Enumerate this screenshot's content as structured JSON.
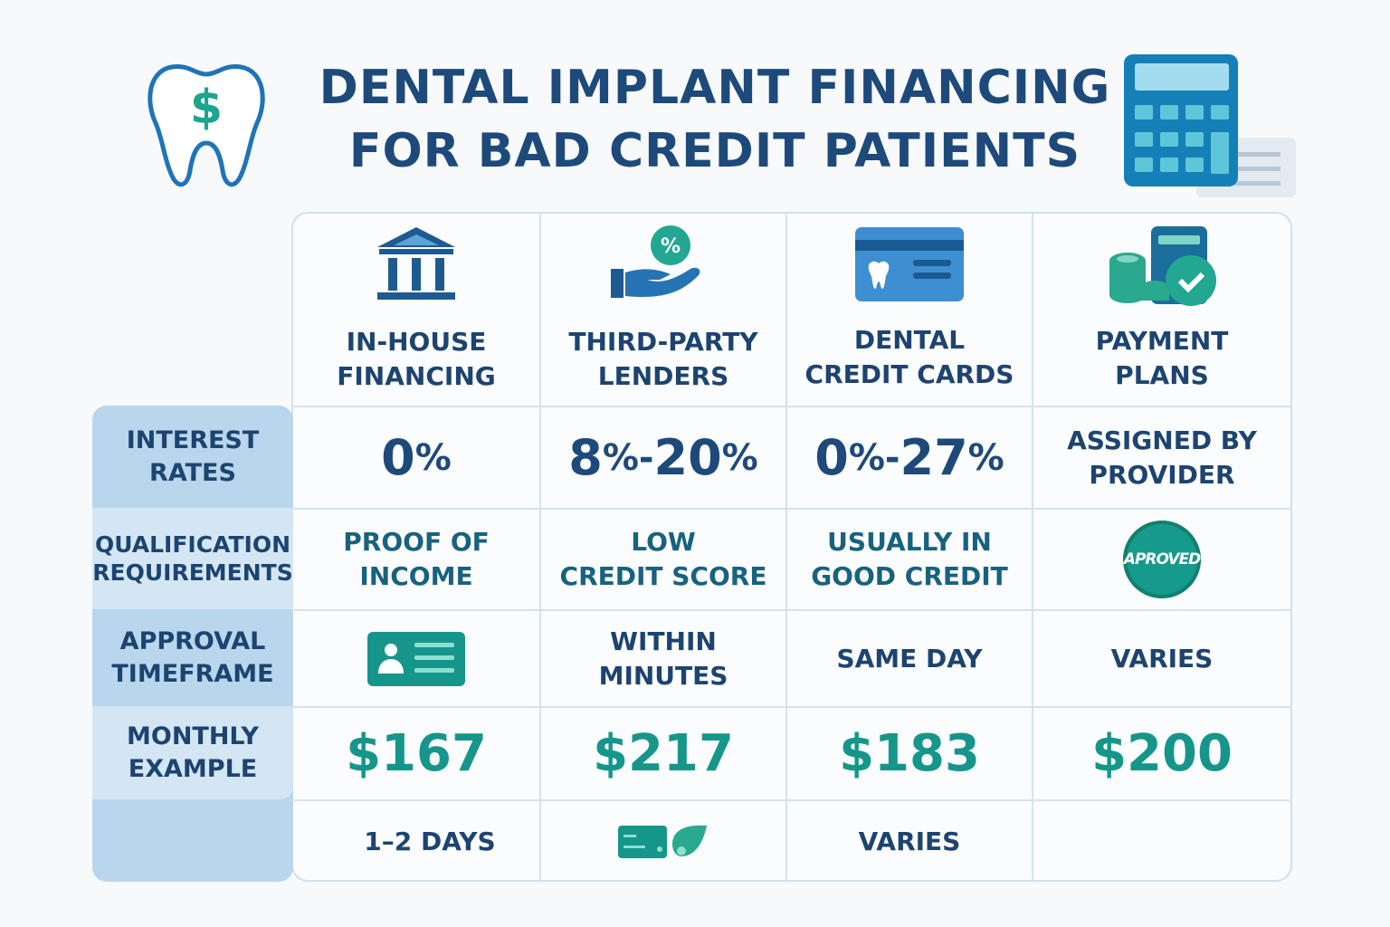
{
  "title": {
    "line1": "DENTAL IMPLANT FINANCING",
    "line2": "FOR BAD CREDIT PATIENTS"
  },
  "icons": {
    "logo": "tooth-dollar-icon",
    "corner": "calculator-icon"
  },
  "colors": {
    "navy": "#1d4a7a",
    "teal": "#16968a",
    "label_bg": "#b9d6ec",
    "label_bg_light": "#d4e6f4"
  },
  "columns": [
    {
      "line1": "IN-HOUSE",
      "line2": "FINANCING",
      "icon": "bank-icon"
    },
    {
      "line1": "THIRD-PARTY",
      "line2": "LENDERS",
      "icon": "hand-percent-icon"
    },
    {
      "line1": "DENTAL",
      "line2": "CREDIT CARDS",
      "icon": "dental-card-icon"
    },
    {
      "line1": "PAYMENT",
      "line2": "PLANS",
      "icon": "coins-check-icon"
    }
  ],
  "rows": [
    {
      "label1": "INTEREST",
      "label2": "RATES",
      "cells": [
        {
          "num": "0",
          "pct": "%"
        },
        {
          "num": "8",
          "pct": "%",
          "sep": "-",
          "num2": "20",
          "pct2": "%"
        },
        {
          "num": "0",
          "pct": "%",
          "sep": "-",
          "num2": "27",
          "pct2": "%"
        },
        {
          "line1": "ASSIGNED BY",
          "line2": "PROVIDER"
        }
      ]
    },
    {
      "label1": "QUALIFICATION",
      "label2": "REQUIREMENTS",
      "cells": [
        {
          "line1": "PROOF OF",
          "line2": "INCOME"
        },
        {
          "line1": "LOW",
          "line2": "CREDIT SCORE"
        },
        {
          "line1": "USUALLY IN",
          "line2": "GOOD CREDIT"
        },
        {
          "badge": "APROVED"
        }
      ]
    },
    {
      "label1": "APPROVAL",
      "label2": "TIMEFRAME",
      "cells": [
        {
          "icon": "id-card-icon"
        },
        {
          "line1": "WITHIN",
          "line2": "MINUTES"
        },
        {
          "line1": "SAME DAY"
        },
        {
          "line1": "VARIES"
        }
      ]
    },
    {
      "label1": "MONTHLY",
      "label2": "EXAMPLE",
      "cells": [
        {
          "value": "$167"
        },
        {
          "value": "$217"
        },
        {
          "value": "$183"
        },
        {
          "value": "$200"
        }
      ]
    },
    {
      "cells": [
        {
          "line1": "1–2 DAYS"
        },
        {
          "icon": "card-leaf-icon"
        },
        {
          "line1": "VARIES"
        },
        {}
      ]
    }
  ]
}
